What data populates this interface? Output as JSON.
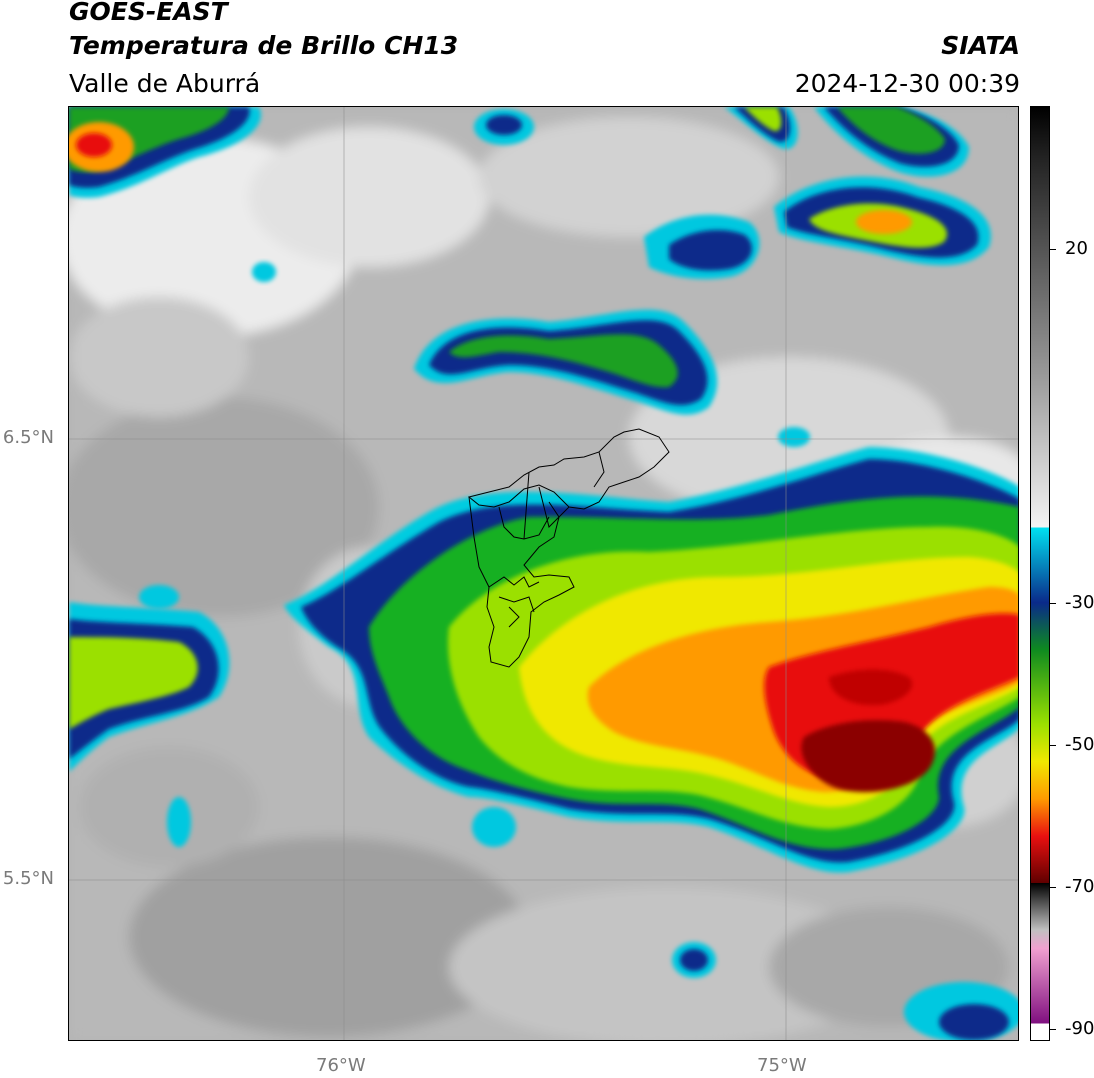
{
  "header": {
    "satellite": "GOES-EAST",
    "product": "Temperatura de Brillo CH13",
    "region": "Valle de Aburrá",
    "institution": "SIATA",
    "datetime": "2024-12-30 00:39"
  },
  "map": {
    "lon_ticks": [
      "76°W",
      "75°W"
    ],
    "lat_ticks": [
      "6.5°N",
      "5.5°N"
    ],
    "gridlines": true,
    "boundary_layer": "municipal boundaries"
  },
  "colorbar": {
    "tick_labels": [
      "20",
      "-30",
      "-50",
      "-70",
      "-90"
    ],
    "min": -92,
    "max": 40,
    "units_shown": false
  },
  "colors": {
    "cold_cloud_core": "#8b0000",
    "cloud_edge": "#00c8e0",
    "clear_sky_gray": "#b4b4b4",
    "frame": "#000000"
  }
}
